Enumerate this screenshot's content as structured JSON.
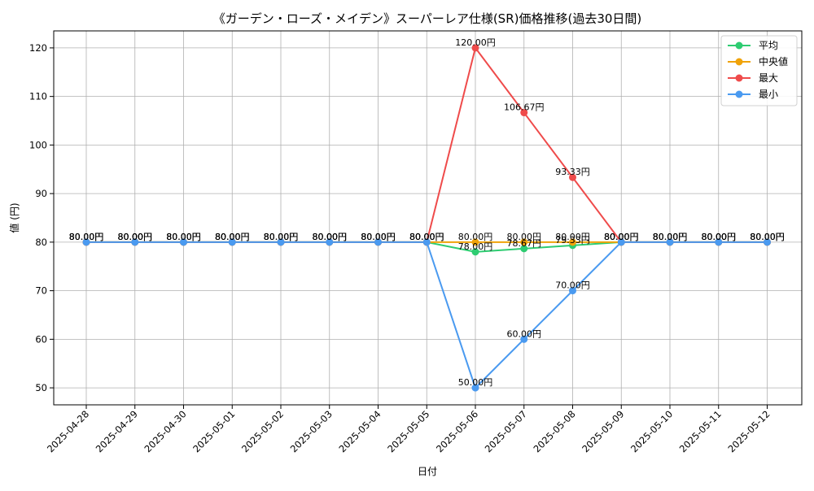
{
  "chart_data": {
    "type": "line",
    "title": "《ガーデン・ローズ・メイデン》スーパーレア仕様(SR)価格推移(過去30日間)",
    "xlabel": "日付",
    "ylabel": "値 (円)",
    "ylim": [
      46.5,
      123.5
    ],
    "y_ticks": [
      50,
      60,
      70,
      80,
      90,
      100,
      110,
      120
    ],
    "grid": true,
    "legend_position": "top-right",
    "label_suffix": "円",
    "categories": [
      "2025-04-28",
      "2025-04-29",
      "2025-04-30",
      "2025-05-01",
      "2025-05-02",
      "2025-05-03",
      "2025-05-04",
      "2025-05-05",
      "2025-05-06",
      "2025-05-07",
      "2025-05-08",
      "2025-05-09",
      "2025-05-10",
      "2025-05-11",
      "2025-05-12"
    ],
    "series": [
      {
        "name": "平均",
        "color": "#2ecc71",
        "values": [
          80,
          80,
          80,
          80,
          80,
          80,
          80,
          80,
          78.0,
          78.67,
          79.33,
          80,
          80,
          80,
          80
        ]
      },
      {
        "name": "中央値",
        "color": "#f0a30a",
        "values": [
          80,
          80,
          80,
          80,
          80,
          80,
          80,
          80,
          80,
          80,
          80,
          80,
          80,
          80,
          80
        ]
      },
      {
        "name": "最大",
        "color": "#ef4b4b",
        "values": [
          80,
          80,
          80,
          80,
          80,
          80,
          80,
          80,
          120,
          106.67,
          93.33,
          80,
          80,
          80,
          80
        ]
      },
      {
        "name": "最小",
        "color": "#4a9af0",
        "values": [
          80,
          80,
          80,
          80,
          80,
          80,
          80,
          80,
          50,
          60,
          70,
          80,
          80,
          80,
          80
        ]
      }
    ]
  }
}
